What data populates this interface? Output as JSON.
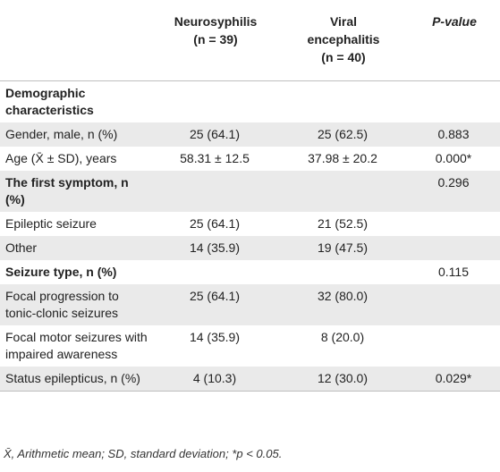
{
  "header": {
    "col1": "",
    "col2_line1": "Neurosyphilis",
    "col2_line2": "(n = 39)",
    "col3_line1": "Viral",
    "col3_line2": "encephalitis",
    "col3_line3": "(n = 40)",
    "col4": "P-value"
  },
  "rows": [
    {
      "label": "Demographic characteristics",
      "a": "",
      "b": "",
      "p": "",
      "section": true
    },
    {
      "label": "Gender, male, n (%)",
      "a": "25 (64.1)",
      "b": "25 (62.5)",
      "p": "0.883"
    },
    {
      "label": "Age (X̄ ± SD), years",
      "a": "58.31 ± 12.5",
      "b": "37.98 ± 20.2",
      "p": "0.000*"
    },
    {
      "label": "The first symptom, n (%)",
      "a": "",
      "b": "",
      "p": "0.296",
      "section": true
    },
    {
      "label": "Epileptic seizure",
      "a": "25 (64.1)",
      "b": "21 (52.5)",
      "p": ""
    },
    {
      "label": "Other",
      "a": "14 (35.9)",
      "b": "19 (47.5)",
      "p": ""
    },
    {
      "label": "Seizure type, n (%)",
      "a": "",
      "b": "",
      "p": "0.115",
      "section": true
    },
    {
      "label": "Focal progression to tonic-clonic seizures",
      "a": "25 (64.1)",
      "b": "32 (80.0)",
      "p": ""
    },
    {
      "label": "Focal motor seizures with impaired awareness",
      "a": "14 (35.9)",
      "b": "8 (20.0)",
      "p": ""
    },
    {
      "label": "Status epilepticus, n (%)",
      "a": "4 (10.3)",
      "b": "12 (30.0)",
      "p": "0.029*"
    }
  ],
  "footnote": "X̄, Arithmetic mean; SD, standard deviation; *p < 0.05."
}
